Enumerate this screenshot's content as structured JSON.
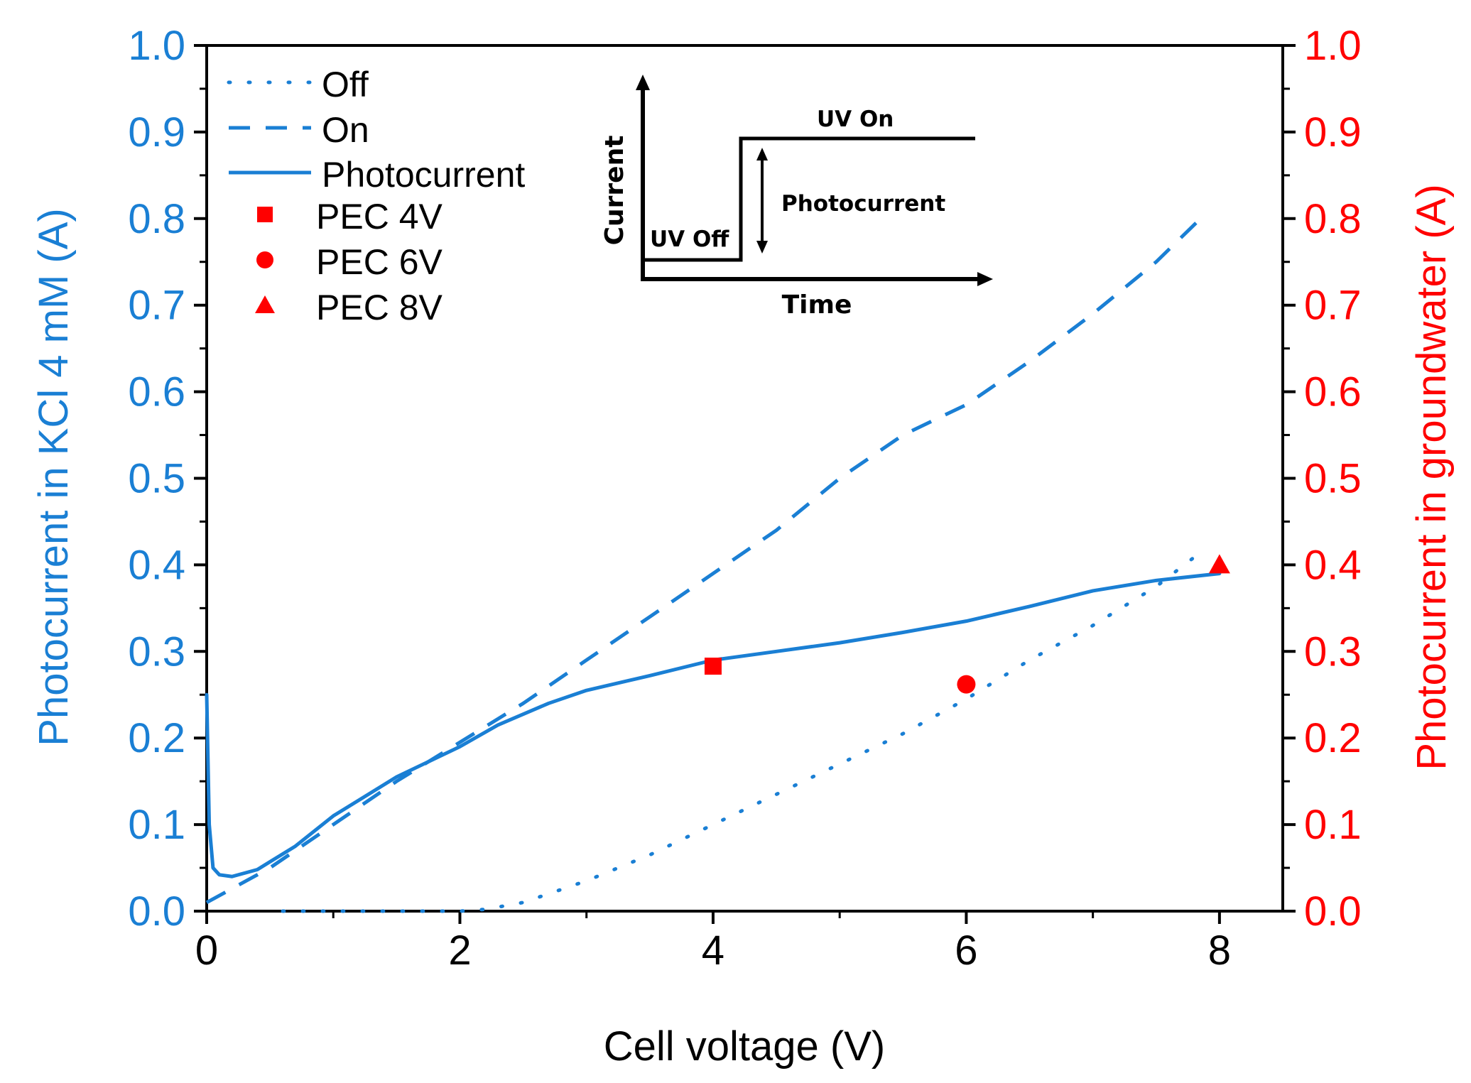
{
  "chart_data": {
    "type": "line",
    "xlabel": "Cell voltage (V)",
    "ylabel_left": "Photocurrent in KCl 4 mM (A)",
    "ylabel_right": "Photocurrent in groundwater (A)",
    "xlim": [
      0,
      8.5
    ],
    "ylim_left": [
      0,
      1.0
    ],
    "ylim_right": [
      0,
      1.0
    ],
    "x_ticks": [
      0,
      2,
      4,
      6,
      8
    ],
    "x_tick_labels": [
      "0",
      "2",
      "4",
      "6",
      "8"
    ],
    "y_ticks": [
      0,
      0.1,
      0.2,
      0.3,
      0.4,
      0.5,
      0.6,
      0.7,
      0.8,
      0.9,
      1.0
    ],
    "y_tick_labels": [
      "0.0",
      "0.1",
      "0.2",
      "0.3",
      "0.4",
      "0.5",
      "0.6",
      "0.7",
      "0.8",
      "0.9",
      "1.0"
    ],
    "series": [
      {
        "name": "Off",
        "style": "dotted",
        "axis": "left",
        "color": "#1a7fd4",
        "x": [
          0.6,
          1.0,
          1.5,
          2.0,
          2.2,
          2.5,
          3.0,
          3.5,
          4.0,
          4.5,
          5.0,
          5.5,
          6.0,
          6.5,
          7.0,
          7.5,
          7.9
        ],
        "y": [
          0.0,
          0.0,
          0.0,
          0.0,
          0.002,
          0.01,
          0.035,
          0.065,
          0.1,
          0.135,
          0.17,
          0.205,
          0.245,
          0.29,
          0.33,
          0.375,
          0.42
        ]
      },
      {
        "name": "On",
        "style": "dashed",
        "axis": "left",
        "color": "#1a7fd4",
        "x": [
          0.0,
          0.5,
          1.0,
          1.5,
          2.0,
          2.5,
          3.0,
          3.5,
          4.0,
          4.5,
          5.0,
          5.5,
          6.0,
          6.5,
          7.0,
          7.5,
          7.85
        ],
        "y": [
          0.01,
          0.05,
          0.1,
          0.15,
          0.195,
          0.24,
          0.29,
          0.34,
          0.39,
          0.44,
          0.5,
          0.55,
          0.585,
          0.635,
          0.69,
          0.75,
          0.8
        ]
      },
      {
        "name": "Photocurrent",
        "style": "solid",
        "axis": "left",
        "color": "#1a7fd4",
        "x": [
          0.0,
          0.02,
          0.05,
          0.1,
          0.2,
          0.4,
          0.7,
          1.0,
          1.5,
          2.0,
          2.3,
          2.7,
          3.0,
          3.5,
          4.0,
          4.5,
          5.0,
          5.5,
          6.0,
          6.5,
          7.0,
          7.5,
          8.0
        ],
        "y": [
          0.25,
          0.1,
          0.05,
          0.042,
          0.04,
          0.048,
          0.075,
          0.11,
          0.155,
          0.19,
          0.215,
          0.24,
          0.255,
          0.272,
          0.29,
          0.3,
          0.31,
          0.322,
          0.335,
          0.352,
          0.37,
          0.382,
          0.39
        ]
      },
      {
        "name": "PEC 4V",
        "style": "marker-square",
        "axis": "right",
        "color": "#ff0000",
        "x": [
          4
        ],
        "y": [
          0.283
        ]
      },
      {
        "name": "PEC 6V",
        "style": "marker-circle",
        "axis": "right",
        "color": "#ff0000",
        "x": [
          6
        ],
        "y": [
          0.262
        ]
      },
      {
        "name": "PEC 8V",
        "style": "marker-triangle",
        "axis": "right",
        "color": "#ff0000",
        "x": [
          8
        ],
        "y": [
          0.4
        ]
      }
    ],
    "legend": {
      "position": "top-left",
      "entries": [
        "Off",
        "On",
        "Photocurrent",
        "PEC 4V",
        "PEC 6V",
        "PEC 8V"
      ]
    },
    "inset": {
      "title": "",
      "x_label": "Time",
      "y_label": "Current",
      "label_off": "UV Off",
      "label_on": "UV On",
      "label_delta": "Photocurrent"
    }
  },
  "colors": {
    "left_axis": "#1a7fd4",
    "right_axis": "#ff0000",
    "axis_line": "#000000"
  }
}
